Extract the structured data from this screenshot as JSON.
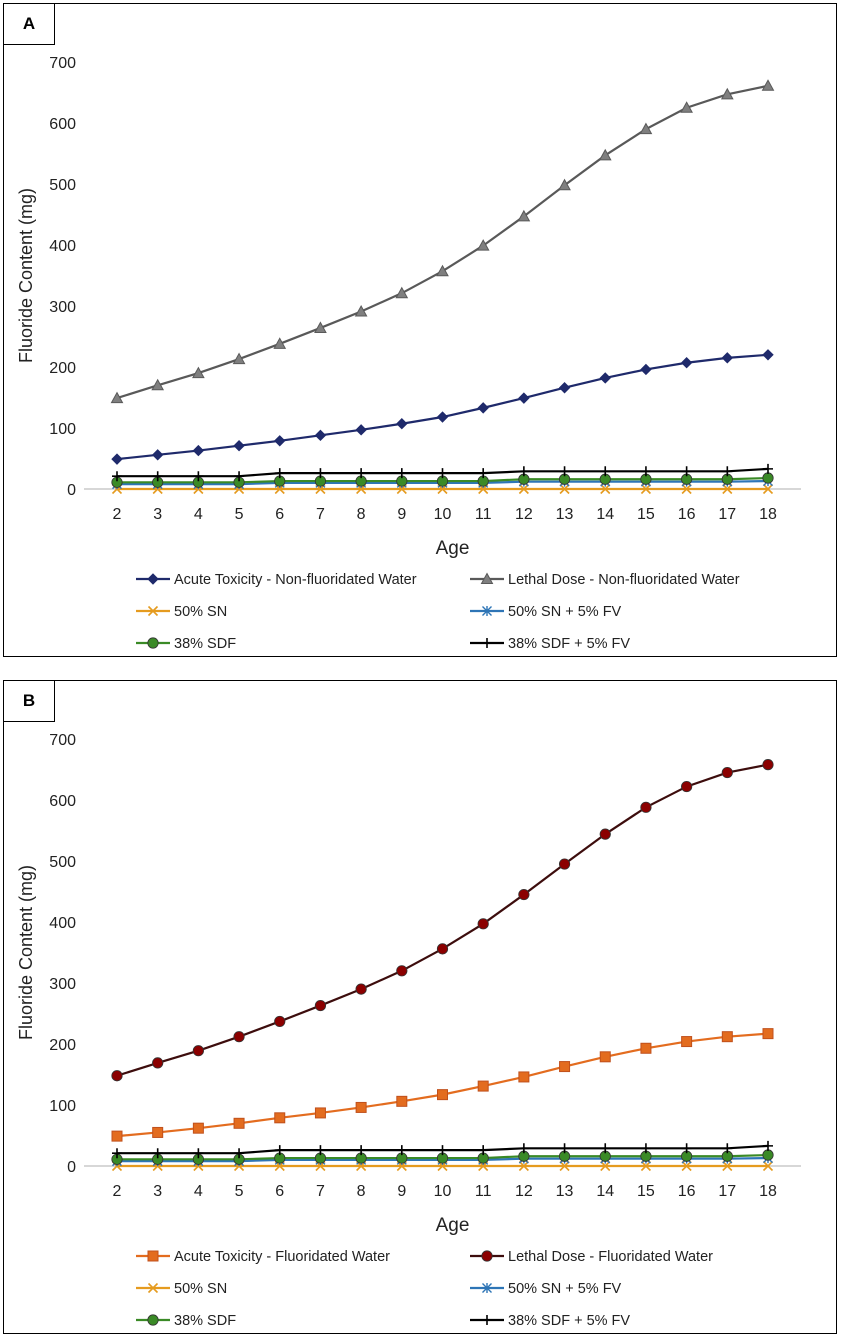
{
  "chart_data": [
    {
      "panel": "A",
      "type": "line",
      "xlabel": "Age",
      "ylabel": "Fluoride Content (mg)",
      "ylim": [
        0,
        700
      ],
      "yticks": [
        0,
        100,
        200,
        300,
        400,
        500,
        600,
        700
      ],
      "x": [
        2,
        3,
        4,
        5,
        6,
        7,
        8,
        9,
        10,
        11,
        12,
        13,
        14,
        15,
        16,
        17,
        18
      ],
      "series": [
        {
          "name": "Acute Toxicity - Non-fluoridated Water",
          "color": "#1f2a6b",
          "marker": "diamond",
          "values": [
            49,
            56,
            63,
            71,
            79,
            88,
            97,
            107,
            118,
            133,
            149,
            166,
            182,
            196,
            207,
            215,
            220
          ]
        },
        {
          "name": "Lethal Dose - Non-fluoridated Water",
          "color": "#595959",
          "marker": "triangle",
          "values": [
            149,
            170,
            190,
            213,
            238,
            264,
            291,
            321,
            357,
            399,
            447,
            498,
            547,
            590,
            625,
            647,
            661
          ]
        },
        {
          "name": "50% SN",
          "color": "#e59b1f",
          "marker": "x",
          "values": [
            0,
            0,
            0,
            0,
            0,
            0,
            0,
            0,
            0,
            0,
            0,
            0,
            0,
            0,
            0,
            0,
            0
          ]
        },
        {
          "name": "50% SN + 5% FV",
          "color": "#2e75b6",
          "marker": "asterisk",
          "values": [
            8,
            8,
            8,
            8,
            10,
            10,
            10,
            10,
            10,
            10,
            12,
            12,
            12,
            12,
            12,
            12,
            13
          ]
        },
        {
          "name": "38% SDF",
          "color": "#3a8a26",
          "marker": "circle",
          "values": [
            11,
            11,
            11,
            11,
            13,
            13,
            13,
            13,
            13,
            13,
            16,
            16,
            16,
            16,
            16,
            16,
            18
          ]
        },
        {
          "name": "38% SDF + 5% FV",
          "color": "#000000",
          "marker": "plus",
          "values": [
            21,
            21,
            21,
            21,
            26,
            26,
            26,
            26,
            26,
            26,
            29,
            29,
            29,
            29,
            29,
            29,
            33
          ]
        }
      ]
    },
    {
      "panel": "B",
      "type": "line",
      "xlabel": "Age",
      "ylabel": "Fluoride Content (mg)",
      "ylim": [
        0,
        700
      ],
      "yticks": [
        0,
        100,
        200,
        300,
        400,
        500,
        600,
        700
      ],
      "x": [
        2,
        3,
        4,
        5,
        6,
        7,
        8,
        9,
        10,
        11,
        12,
        13,
        14,
        15,
        16,
        17,
        18
      ],
      "series": [
        {
          "name": "Acute Toxicity - Fluoridated Water",
          "color": "#e36c1f",
          "marker": "square",
          "values": [
            49,
            55,
            62,
            70,
            79,
            87,
            96,
            106,
            117,
            131,
            146,
            163,
            179,
            193,
            204,
            212,
            217
          ]
        },
        {
          "name": "Lethal Dose - Fluoridated Water",
          "color": "#8b0000",
          "lineColor": "#3d0d0d",
          "marker": "circle",
          "values": [
            148,
            169,
            189,
            212,
            237,
            263,
            290,
            320,
            356,
            397,
            445,
            495,
            544,
            588,
            622,
            645,
            658
          ]
        },
        {
          "name": "50% SN",
          "color": "#e59b1f",
          "marker": "x",
          "values": [
            0,
            0,
            0,
            0,
            0,
            0,
            0,
            0,
            0,
            0,
            0,
            0,
            0,
            0,
            0,
            0,
            0
          ]
        },
        {
          "name": "50% SN + 5% FV",
          "color": "#2e75b6",
          "marker": "asterisk",
          "values": [
            8,
            8,
            8,
            8,
            10,
            10,
            10,
            10,
            10,
            10,
            12,
            12,
            12,
            12,
            12,
            12,
            13
          ]
        },
        {
          "name": "38% SDF",
          "color": "#3a8a26",
          "marker": "circle",
          "values": [
            11,
            11,
            11,
            11,
            13,
            13,
            13,
            13,
            13,
            13,
            16,
            16,
            16,
            16,
            16,
            16,
            18
          ]
        },
        {
          "name": "38% SDF + 5% FV",
          "color": "#000000",
          "marker": "plus",
          "values": [
            21,
            21,
            21,
            21,
            26,
            26,
            26,
            26,
            26,
            26,
            29,
            29,
            29,
            29,
            29,
            29,
            33
          ]
        }
      ]
    }
  ]
}
